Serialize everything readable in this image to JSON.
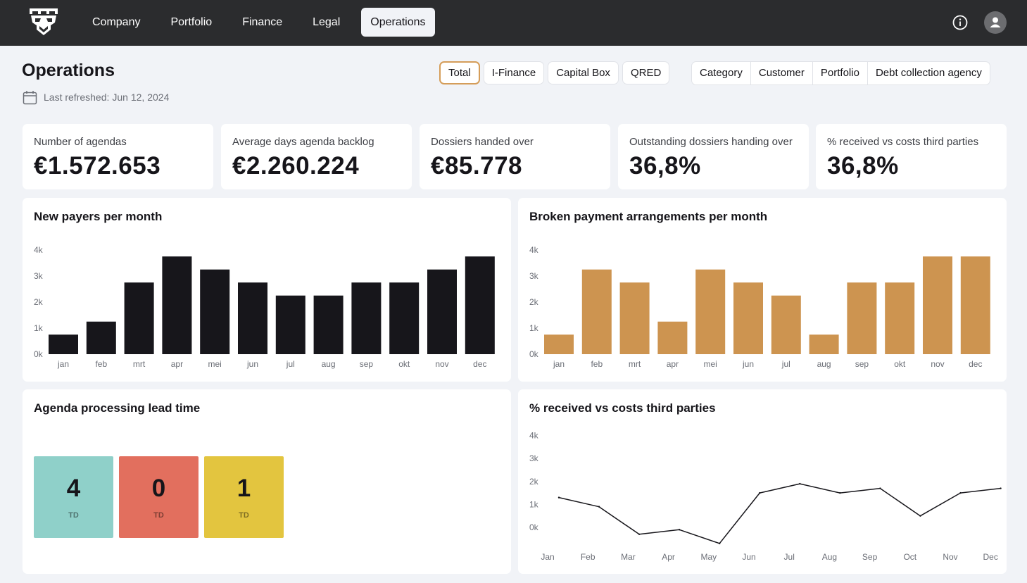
{
  "nav": {
    "items": [
      {
        "label": "Company",
        "active": false
      },
      {
        "label": "Portfolio",
        "active": false
      },
      {
        "label": "Finance",
        "active": false
      },
      {
        "label": "Legal",
        "active": false
      },
      {
        "label": "Operations",
        "active": true
      }
    ],
    "icons": [
      "logo-icon",
      "info-icon",
      "user-icon"
    ]
  },
  "header": {
    "title": "Operations",
    "refreshed_label": "Last refreshed:",
    "refreshed_date": "Jun 12, 2024"
  },
  "source_filters": {
    "selected": "Total",
    "options": [
      "Total",
      "I-Finance",
      "Capital Box",
      "QRED"
    ]
  },
  "view_filters": {
    "options": [
      "Category",
      "Customer",
      "Portfolio",
      "Debt collection agency"
    ]
  },
  "kpis": [
    {
      "label": "Number of agendas",
      "value": "€1.572.653"
    },
    {
      "label": "Average days agenda backlog",
      "value": "€2.260.224"
    },
    {
      "label": "Dossiers handed over",
      "value": "€85.778"
    },
    {
      "label": "Outstanding dossiers handing over",
      "value": "36,8%"
    },
    {
      "label": "% received vs costs third parties",
      "value": "36,8%"
    }
  ],
  "lead_time": {
    "title": "Agenda processing lead time",
    "tiles": [
      {
        "value": "4",
        "unit": "TD",
        "color": "#8fd0c9"
      },
      {
        "value": "0",
        "unit": "TD",
        "color": "#e26f5e"
      },
      {
        "value": "1",
        "unit": "TD",
        "color": "#e3c53f"
      }
    ]
  },
  "colors": {
    "topbar": "#2b2c2e",
    "accent": "#d59d59",
    "bar_dark": "#17161b",
    "bar_orange": "#cd9450"
  },
  "chart_data": [
    {
      "type": "bar",
      "title": "New payers per month",
      "categories": [
        "jan",
        "feb",
        "mrt",
        "apr",
        "mei",
        "jun",
        "jul",
        "aug",
        "sep",
        "okt",
        "nov",
        "dec"
      ],
      "yticks": [
        "0k",
        "1k",
        "2k",
        "3k",
        "4k"
      ],
      "ylim": [
        0,
        4000
      ],
      "values": [
        750,
        1250,
        2750,
        3750,
        3250,
        2750,
        2250,
        2250,
        2750,
        2750,
        3250,
        3750
      ],
      "color": "#17161b"
    },
    {
      "type": "bar",
      "title": "Broken payment arrangements per month",
      "categories": [
        "jan",
        "feb",
        "mrt",
        "apr",
        "mei",
        "jun",
        "jul",
        "aug",
        "sep",
        "okt",
        "nov",
        "dec"
      ],
      "yticks": [
        "0k",
        "1k",
        "2k",
        "3k",
        "4k"
      ],
      "ylim": [
        0,
        4000
      ],
      "values": [
        750,
        3250,
        2750,
        1250,
        3250,
        2750,
        2250,
        750,
        2750,
        2750,
        3750,
        3750
      ],
      "color": "#cd9450"
    },
    {
      "type": "line",
      "title": "% received vs costs third parties",
      "categories": [
        "Jan",
        "Feb",
        "Mar",
        "Apr",
        "May",
        "Jun",
        "Jul",
        "Aug",
        "Sep",
        "Oct",
        "Nov",
        "Dec"
      ],
      "yticks": [
        "0k",
        "1k",
        "2k",
        "3k",
        "4k"
      ],
      "ylim": [
        0,
        4000
      ],
      "values": [
        1300,
        900,
        -300,
        -100,
        -700,
        1500,
        1900,
        1500,
        1700,
        500,
        1500,
        1700
      ],
      "color": "#17161b"
    }
  ]
}
